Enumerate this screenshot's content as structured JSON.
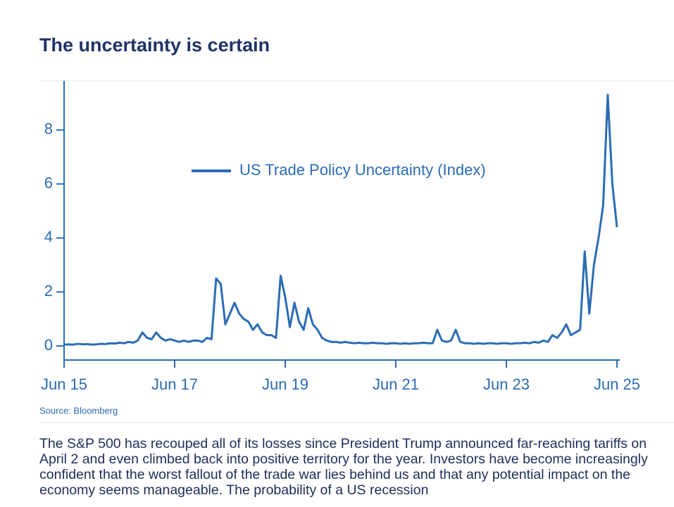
{
  "chart_data": {
    "type": "line",
    "title": "The uncertainty is certain",
    "source": "Source: Bloomberg",
    "x": [
      "Jun 15",
      "Jul 15",
      "Aug 15",
      "Sep 15",
      "Oct 15",
      "Nov 15",
      "Dec 15",
      "Jan 16",
      "Feb 16",
      "Mar 16",
      "Apr 16",
      "May 16",
      "Jun 16",
      "Jul 16",
      "Aug 16",
      "Sep 16",
      "Oct 16",
      "Nov 16",
      "Dec 16",
      "Jan 17",
      "Feb 17",
      "Mar 17",
      "Apr 17",
      "May 17",
      "Jun 17",
      "Jul 17",
      "Aug 17",
      "Sep 17",
      "Oct 17",
      "Nov 17",
      "Dec 17",
      "Jan 18",
      "Feb 18",
      "Mar 18",
      "Apr 18",
      "May 18",
      "Jun 18",
      "Jul 18",
      "Aug 18",
      "Sep 18",
      "Oct 18",
      "Nov 18",
      "Dec 18",
      "Jan 19",
      "Feb 19",
      "Mar 19",
      "Apr 19",
      "May 19",
      "Jun 19",
      "Jul 19",
      "Aug 19",
      "Sep 19",
      "Oct 19",
      "Nov 19",
      "Dec 19",
      "Jan 20",
      "Feb 20",
      "Mar 20",
      "Apr 20",
      "May 20",
      "Jun 20",
      "Jul 20",
      "Aug 20",
      "Sep 20",
      "Oct 20",
      "Nov 20",
      "Dec 20",
      "Jan 21",
      "Feb 21",
      "Mar 21",
      "Apr 21",
      "May 21",
      "Jun 21",
      "Jul 21",
      "Aug 21",
      "Sep 21",
      "Oct 21",
      "Nov 21",
      "Dec 21",
      "Jan 22",
      "Feb 22",
      "Mar 22",
      "Apr 22",
      "May 22",
      "Jun 22",
      "Jul 22",
      "Aug 22",
      "Sep 22",
      "Oct 22",
      "Nov 22",
      "Dec 22",
      "Jan 23",
      "Feb 23",
      "Mar 23",
      "Apr 23",
      "May 23",
      "Jun 23",
      "Jul 23",
      "Aug 23",
      "Sep 23",
      "Oct 23",
      "Nov 23",
      "Dec 23",
      "Jan 24",
      "Feb 24",
      "Mar 24",
      "Apr 24",
      "May 24",
      "Jun 24",
      "Jul 24",
      "Aug 24",
      "Sep 24",
      "Oct 24",
      "Nov 24",
      "Dec 24",
      "Jan 25",
      "Feb 25",
      "Mar 25",
      "Apr 25",
      "May 25",
      "Jun 25"
    ],
    "series": [
      {
        "name": "US Trade Policy Uncertainty (Index)",
        "color": "#2b6cb3",
        "values": [
          0.05,
          0.06,
          0.05,
          0.08,
          0.06,
          0.07,
          0.05,
          0.06,
          0.08,
          0.07,
          0.1,
          0.09,
          0.12,
          0.1,
          0.15,
          0.12,
          0.2,
          0.5,
          0.3,
          0.25,
          0.5,
          0.3,
          0.2,
          0.25,
          0.2,
          0.15,
          0.2,
          0.15,
          0.2,
          0.2,
          0.15,
          0.3,
          0.25,
          2.5,
          2.3,
          0.8,
          1.2,
          1.6,
          1.2,
          1.0,
          0.9,
          0.6,
          0.8,
          0.5,
          0.4,
          0.4,
          0.3,
          2.6,
          1.8,
          0.7,
          1.6,
          0.9,
          0.6,
          1.4,
          0.8,
          0.6,
          0.3,
          0.2,
          0.15,
          0.15,
          0.12,
          0.15,
          0.12,
          0.1,
          0.12,
          0.1,
          0.1,
          0.12,
          0.1,
          0.1,
          0.08,
          0.1,
          0.1,
          0.08,
          0.1,
          0.08,
          0.1,
          0.1,
          0.12,
          0.1,
          0.1,
          0.6,
          0.2,
          0.15,
          0.2,
          0.6,
          0.15,
          0.1,
          0.1,
          0.08,
          0.1,
          0.08,
          0.1,
          0.1,
          0.08,
          0.1,
          0.1,
          0.08,
          0.1,
          0.1,
          0.12,
          0.1,
          0.15,
          0.12,
          0.2,
          0.15,
          0.4,
          0.3,
          0.5,
          0.8,
          0.4,
          0.5,
          0.6,
          3.5,
          1.2,
          3.0,
          4.0,
          5.2,
          9.3,
          6.0,
          4.4
        ]
      }
    ],
    "xticks": [
      "Jun 15",
      "Jun 17",
      "Jun 19",
      "Jun 21",
      "Jun 23",
      "Jun 25"
    ],
    "ylim": [
      -0.5,
      9.5
    ],
    "yticks": [
      0,
      2,
      4,
      6,
      8
    ],
    "grid": false
  },
  "body": "The S&P 500 has recouped all of its losses since President Trump announced far-reaching tariffs on April 2 and even climbed back into positive territory for the year. Investors have become increasingly confident that the worst fallout of the trade war lies behind us and that any potential impact on the economy seems manageable. The probability of a US recession"
}
